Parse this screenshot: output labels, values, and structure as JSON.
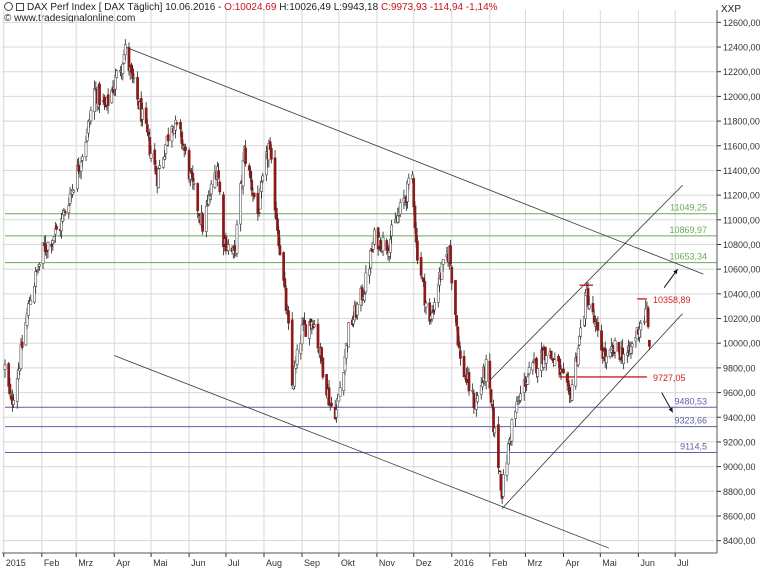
{
  "header": {
    "instrument": "DAX Perf  Index [ DAX  Täglich] 10.06.2016 -",
    "open": "O:10024,69",
    "high_low_close": "H:10026,49 L:9943,18",
    "close_change": "C:9973,93 -114,94 -1,14%",
    "source": "© www.tradesignalonline.com",
    "symbol": "XXP"
  },
  "chart_data": {
    "type": "candlestick",
    "title": "DAX Perf Index",
    "ylim": [
      8300,
      12700
    ],
    "y_ticks": [
      8400,
      8600,
      8800,
      9000,
      9200,
      9400,
      9600,
      9800,
      10000,
      10200,
      10400,
      10600,
      10800,
      11000,
      11200,
      11400,
      11600,
      11800,
      12000,
      12200,
      12400,
      12600
    ],
    "y_tick_labels": [
      "8400,00",
      "8600,00",
      "8800,00",
      "9000,00",
      "9200,00",
      "9400,00",
      "9600,00",
      "9800,00",
      "10000,00",
      "10200,00",
      "10400,00",
      "10600,00",
      "10800,00",
      "11000,00",
      "11200,00",
      "11400,00",
      "11600,00",
      "11800,00",
      "12000,00",
      "12200,00",
      "12400,00",
      "12600,00"
    ],
    "x_range": [
      "2015-01-02",
      "2016-07-31"
    ],
    "x_ticks": [
      {
        "date": "2015-01-01",
        "label": "2015"
      },
      {
        "date": "2015-02-01",
        "label": "Feb"
      },
      {
        "date": "2015-03-01",
        "label": "Mrz"
      },
      {
        "date": "2015-04-01",
        "label": "Apr"
      },
      {
        "date": "2015-05-01",
        "label": "Mai"
      },
      {
        "date": "2015-06-01",
        "label": "Jun"
      },
      {
        "date": "2015-07-01",
        "label": "Jul"
      },
      {
        "date": "2015-08-01",
        "label": "Aug"
      },
      {
        "date": "2015-09-01",
        "label": "Sep"
      },
      {
        "date": "2015-10-01",
        "label": "Okt"
      },
      {
        "date": "2015-11-01",
        "label": "Nov"
      },
      {
        "date": "2015-12-01",
        "label": "Dez"
      },
      {
        "date": "2016-01-01",
        "label": "2016"
      },
      {
        "date": "2016-02-01",
        "label": "Feb"
      },
      {
        "date": "2016-03-01",
        "label": "Mrz"
      },
      {
        "date": "2016-04-01",
        "label": "Apr"
      },
      {
        "date": "2016-05-01",
        "label": "Mai"
      },
      {
        "date": "2016-06-01",
        "label": "Jun"
      },
      {
        "date": "2016-07-01",
        "label": "Jul"
      }
    ],
    "anchors": [
      [
        "2015-01-02",
        9800
      ],
      [
        "2015-01-07",
        9500
      ],
      [
        "2015-01-14",
        9850
      ],
      [
        "2015-01-22",
        10350
      ],
      [
        "2015-02-02",
        10750
      ],
      [
        "2015-02-16",
        10950
      ],
      [
        "2015-03-02",
        11400
      ],
      [
        "2015-03-10",
        11700
      ],
      [
        "2015-03-16",
        12050
      ],
      [
        "2015-03-25",
        11900
      ],
      [
        "2015-04-10",
        12370
      ],
      [
        "2015-04-15",
        12150
      ],
      [
        "2015-04-22",
        11900
      ],
      [
        "2015-05-06",
        11350
      ],
      [
        "2015-05-18",
        11800
      ],
      [
        "2015-05-26",
        11650
      ],
      [
        "2015-06-03",
        11300
      ],
      [
        "2015-06-12",
        10950
      ],
      [
        "2015-06-24",
        11450
      ],
      [
        "2015-06-29",
        10850
      ],
      [
        "2015-07-08",
        10700
      ],
      [
        "2015-07-16",
        11550
      ],
      [
        "2015-07-27",
        11050
      ],
      [
        "2015-08-05",
        11600
      ],
      [
        "2015-08-12",
        10950
      ],
      [
        "2015-08-21",
        10100
      ],
      [
        "2015-08-24",
        9650
      ],
      [
        "2015-09-01",
        10100
      ],
      [
        "2015-09-10",
        10200
      ],
      [
        "2015-09-24",
        9500
      ],
      [
        "2015-09-29",
        9450
      ],
      [
        "2015-10-09",
        10100
      ],
      [
        "2015-10-22",
        10450
      ],
      [
        "2015-10-30",
        10850
      ],
      [
        "2015-11-10",
        10800
      ],
      [
        "2015-11-30",
        11350
      ],
      [
        "2015-12-03",
        10800
      ],
      [
        "2015-12-14",
        10150
      ],
      [
        "2015-12-21",
        10500
      ],
      [
        "2015-12-30",
        10750
      ],
      [
        "2016-01-08",
        9850
      ],
      [
        "2016-01-20",
        9500
      ],
      [
        "2016-01-29",
        9800
      ],
      [
        "2016-02-11",
        8800
      ],
      [
        "2016-02-19",
        9350
      ],
      [
        "2016-03-01",
        9700
      ],
      [
        "2016-03-18",
        9950
      ],
      [
        "2016-03-28",
        9800
      ],
      [
        "2016-04-06",
        9550
      ],
      [
        "2016-04-20",
        10400
      ],
      [
        "2016-04-29",
        10050
      ],
      [
        "2016-05-06",
        9850
      ],
      [
        "2016-05-13",
        9950
      ],
      [
        "2016-05-24",
        9900
      ],
      [
        "2016-06-02",
        10150
      ],
      [
        "2016-06-08",
        10250
      ],
      [
        "2016-06-10",
        9974
      ]
    ],
    "last_bar": {
      "date": "2016-06-10",
      "open": 10024.69,
      "high": 10026.49,
      "low": 9943.18,
      "close": 9973.93
    },
    "levels": [
      {
        "value": 11049.25,
        "label": "11049,25",
        "color": "#6aa95a",
        "from": "2015-01-02"
      },
      {
        "value": 10869.97,
        "label": "10869,97",
        "color": "#6aa95a",
        "from": "2015-01-02"
      },
      {
        "value": 10653.34,
        "label": "10653,34",
        "color": "#6aa95a",
        "from": "2015-01-02"
      },
      {
        "value": 10358.89,
        "label": "10358,89",
        "color": "#d42020",
        "from": "2016-05-31",
        "to": "2016-06-08"
      },
      {
        "value": 9727.05,
        "label": "9727,05",
        "color": "#d42020",
        "from": "2016-03-28",
        "to": "2016-06-08"
      },
      {
        "value": 9480.53,
        "label": "9480,53",
        "color": "#6060a8",
        "from": "2015-01-02"
      },
      {
        "value": 9323.66,
        "label": "9323,66",
        "color": "#6060a8",
        "from": "2015-01-02"
      },
      {
        "value": 9114.5,
        "label": "9114,5",
        "color": "#6060a8",
        "from": "2015-01-02"
      }
    ],
    "trendlines": [
      {
        "name": "upper-downtrend",
        "from": [
          "2015-04-10",
          12400
        ],
        "to": [
          "2016-07-24",
          10560
        ],
        "color": "#333"
      },
      {
        "name": "lower-downtrend",
        "from": [
          "2015-04-01",
          9900
        ],
        "to": [
          "2016-05-08",
          8340
        ],
        "color": "#333"
      },
      {
        "name": "channel-upper",
        "from": [
          "2016-02-01",
          9700
        ],
        "to": [
          "2016-07-07",
          11280
        ],
        "color": "#333"
      },
      {
        "name": "channel-lower",
        "from": [
          "2016-02-11",
          8660
        ],
        "to": [
          "2016-07-07",
          10240
        ],
        "color": "#333"
      },
      {
        "name": "red-top",
        "from": [
          "2016-04-14",
          10470
        ],
        "to": [
          "2016-04-25",
          10470
        ],
        "color": "#d42020"
      }
    ],
    "arrows": [
      {
        "name": "up-arrow",
        "from": [
          "2016-06-22",
          10450
        ],
        "to": [
          "2016-07-03",
          10600
        ]
      },
      {
        "name": "down-arrow",
        "from": [
          "2016-06-20",
          9600
        ],
        "to": [
          "2016-06-29",
          9440
        ]
      }
    ],
    "colors": {
      "up": "#ffffff",
      "down": "#8b1a1a",
      "wick": "#222222",
      "grid": "#d8d8d8"
    }
  }
}
